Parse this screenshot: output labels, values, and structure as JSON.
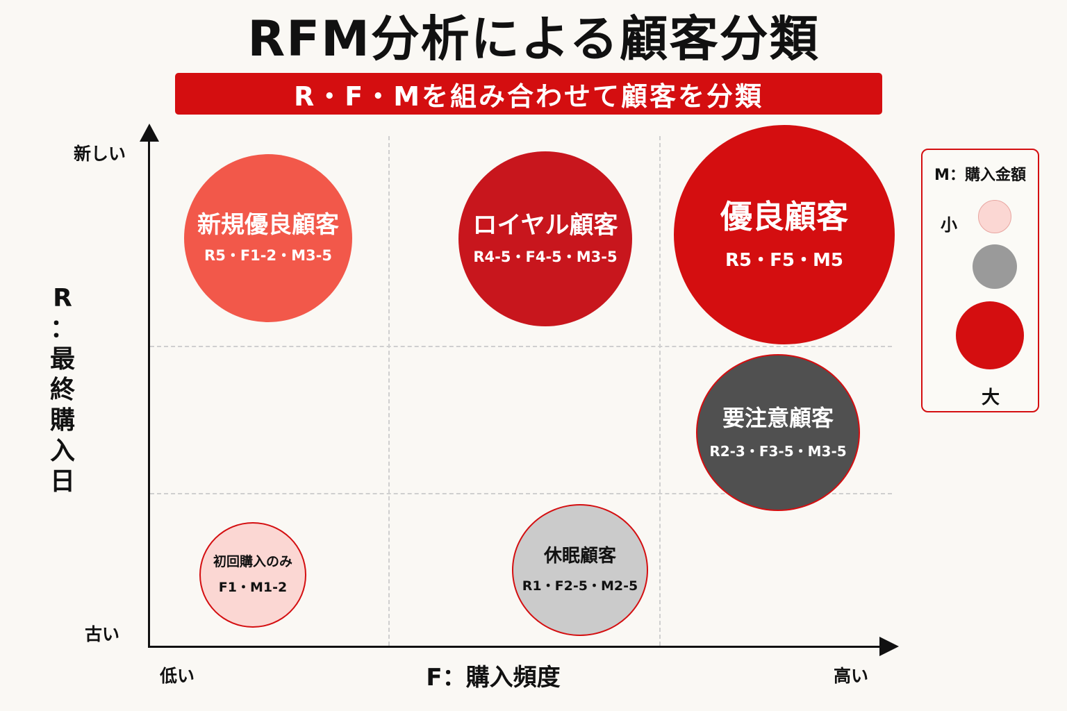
{
  "title": "RFM分析による顧客分類",
  "subtitle": "R・F・Mを組み合わせて顧客を分類",
  "y_axis": {
    "title": "R：最終購入日",
    "title_vertical": "R\n：\n最\n終\n購\n入\n日",
    "top_label": "新しい",
    "bottom_label": "古い"
  },
  "x_axis": {
    "title": "F：購入頻度",
    "left_label": "低い",
    "right_label": "高い"
  },
  "segments": [
    {
      "name": "新規優良顧客",
      "code": "R5・F1-2・M3-5",
      "fill": "#f2584a",
      "text_color": "#ffffff"
    },
    {
      "name": "ロイヤル顧客",
      "code": "R4-5・F4-5・M3-5",
      "fill": "#c8161d",
      "text_color": "#ffffff"
    },
    {
      "name": "優良顧客",
      "code": "R5・F5・M5",
      "fill": "#d40e10",
      "text_color": "#ffffff"
    },
    {
      "name": "要注意顧客",
      "code": "R2-3・F3-5・M3-5",
      "fill": "#505050",
      "text_color": "#ffffff"
    },
    {
      "name": "初回購入のみ",
      "code": "F1・M1-2",
      "fill": "#fbd7d3",
      "text_color": "#111111"
    },
    {
      "name": "休眠顧客",
      "code": "R1・F2-5・M2-5",
      "fill": "#cbcbcb",
      "text_color": "#111111"
    }
  ],
  "legend": {
    "title": "M：購入金額",
    "small_label": "小",
    "large_label": "大",
    "colors": [
      "#fbd7d3",
      "#9a9a9a",
      "#d40e10"
    ]
  },
  "colors": {
    "accent": "#d40e10",
    "background": "#faf8f4"
  }
}
